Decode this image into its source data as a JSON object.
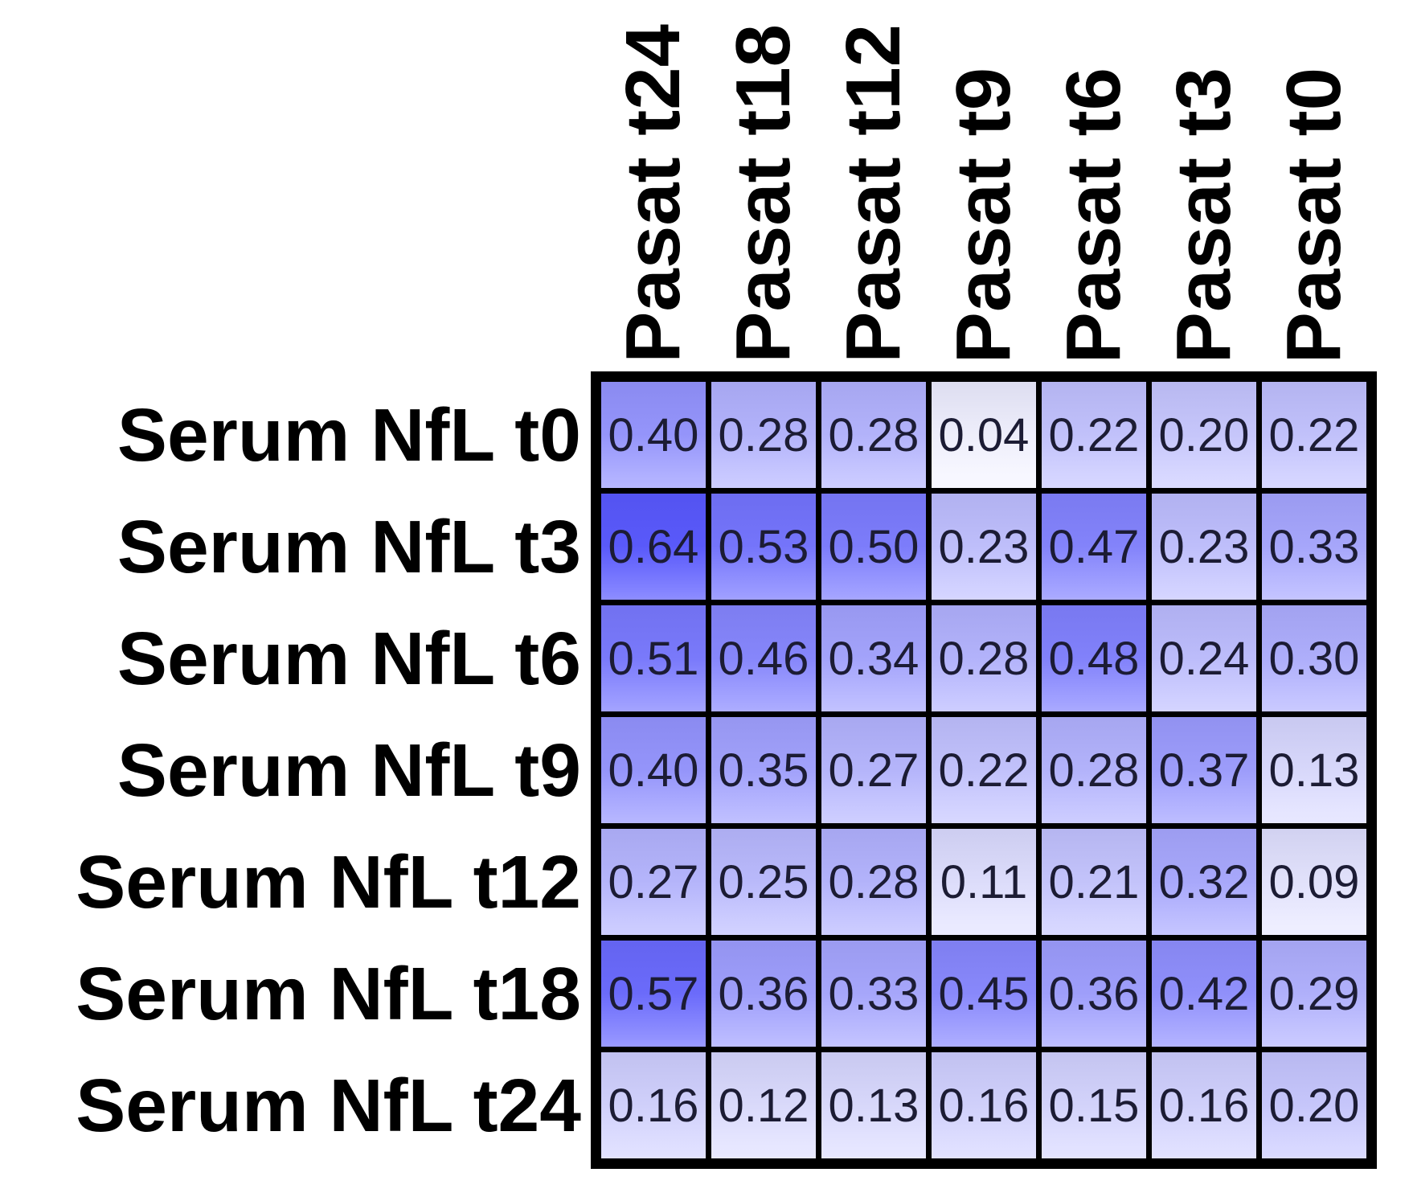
{
  "chart_data": {
    "type": "heatmap",
    "title": "",
    "columns": [
      "Pasat t24",
      "Pasat t18",
      "Pasat t12",
      "Pasat t9",
      "Pasat t6",
      "Pasat t3",
      "Pasat t0"
    ],
    "rows": [
      "Serum NfL t0",
      "Serum NfL t3",
      "Serum NfL t6",
      "Serum NfL t9",
      "Serum NfL t12",
      "Serum NfL t18",
      "Serum NfL t24"
    ],
    "values": [
      [
        0.4,
        0.28,
        0.28,
        0.04,
        0.22,
        0.2,
        0.22
      ],
      [
        0.64,
        0.53,
        0.5,
        0.23,
        0.47,
        0.23,
        0.33
      ],
      [
        0.51,
        0.46,
        0.34,
        0.28,
        0.48,
        0.24,
        0.3
      ],
      [
        0.4,
        0.35,
        0.27,
        0.22,
        0.28,
        0.37,
        0.13
      ],
      [
        0.27,
        0.25,
        0.28,
        0.11,
        0.21,
        0.32,
        0.09
      ],
      [
        0.57,
        0.36,
        0.33,
        0.45,
        0.36,
        0.42,
        0.29
      ],
      [
        0.16,
        0.12,
        0.13,
        0.16,
        0.15,
        0.16,
        0.2
      ]
    ],
    "value_range": [
      0,
      1
    ],
    "cell_value_decimals": 2,
    "colormap": {
      "low": "#ffffff",
      "high": "#0000ff"
    },
    "grid_border_color": "#000000",
    "value_text_color": "#1c1c34",
    "label_text_color": "#000000",
    "column_header_rotation_deg": 90,
    "legend": "none",
    "gridlines": "black cell borders"
  }
}
